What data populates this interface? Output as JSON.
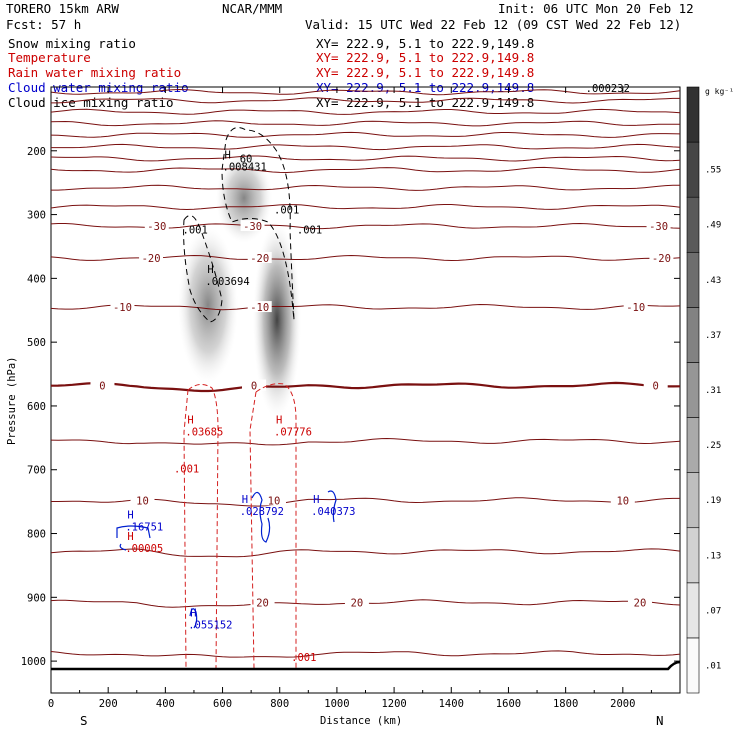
{
  "header": {
    "model": "TORERO  15km ARW",
    "org": "NCAR/MMM",
    "init": "Init: 06 UTC Mon 20 Feb 12",
    "fcst": "Fcst:   57 h",
    "valid": "Valid: 15 UTC Wed 22 Feb 12 (09 CST Wed 22 Feb 12)"
  },
  "legend": [
    {
      "name": "Snow mixing ratio",
      "xy": "XY= 222.9,  5.1 to 222.9,149.8",
      "color": "#000000",
      "xy_color": "#000000"
    },
    {
      "name": "Temperature",
      "xy": "XY= 222.9,  5.1 to 222.9,149.8",
      "color": "#cc0000",
      "xy_color": "#cc0000"
    },
    {
      "name": "Rain water mixing ratio",
      "xy": "XY= 222.9,  5.1 to 222.9,149.8",
      "color": "#cc0000",
      "xy_color": "#cc0000"
    },
    {
      "name": "Cloud water mixing ratio",
      "xy": "XY= 222.9,  5.1 to 222.9,149.8",
      "color": "#0000cc",
      "xy_color": "#0000cc"
    },
    {
      "name": "Cloud ice mixing ratio",
      "xy": "XY= 222.9,  5.1 to 222.9,149.8",
      "color": "#000000",
      "xy_color": "#000000"
    }
  ],
  "chart_data": {
    "type": "cross-section",
    "xlabel": "Distance (km)",
    "ylabel": "Pressure (hPa)",
    "xlim": [
      0,
      2200
    ],
    "ylim": [
      1050,
      100
    ],
    "x_ticks": [
      0,
      200,
      400,
      600,
      800,
      1000,
      1200,
      1400,
      1600,
      1800,
      2000
    ],
    "y_ticks": [
      200,
      300,
      400,
      500,
      600,
      700,
      800,
      900,
      1000
    ],
    "endpoints": {
      "left": "S",
      "right": "N"
    },
    "colorbar": {
      "unit": "g kg⁻¹",
      "ticks": [
        ".01",
        ".07",
        ".13",
        ".19",
        ".25",
        ".31",
        ".37",
        ".43",
        ".49",
        ".55"
      ]
    },
    "temperature_lines": {
      "color": "#7a1010",
      "levels": [
        {
          "p": 108,
          "v": ""
        },
        {
          "p": 121,
          "v": ""
        },
        {
          "p": 139,
          "v": ""
        },
        {
          "p": 157,
          "v": ""
        },
        {
          "p": 175,
          "v": ""
        },
        {
          "p": 194,
          "v": ""
        },
        {
          "p": 212,
          "v": ""
        },
        {
          "p": 230,
          "v": ""
        },
        {
          "p": 258,
          "v": ""
        },
        {
          "p": 288,
          "v": ""
        },
        {
          "p": 318,
          "v": "-30",
          "lx": [
            370,
            705,
            2125
          ]
        },
        {
          "p": 368,
          "v": "-20",
          "lx": [
            350,
            730,
            2135
          ]
        },
        {
          "p": 445,
          "v": "-10",
          "lx": [
            250,
            730,
            2045
          ]
        },
        {
          "p": 568,
          "v": "0",
          "lx": [
            180,
            710,
            2115
          ],
          "bold": true
        },
        {
          "p": 655,
          "v": ""
        },
        {
          "p": 748,
          "v": "10",
          "lx": [
            320,
            780,
            2000
          ]
        },
        {
          "p": 828,
          "v": ""
        },
        {
          "p": 908,
          "v": "20",
          "lx": [
            1070,
            740,
            2060
          ]
        },
        {
          "p": 988,
          "v": ""
        }
      ]
    },
    "snow_contour_labels": [
      {
        "x": 660,
        "p": 218,
        "text": "60"
      },
      {
        "x": 460,
        "p": 330,
        "text": ".001"
      },
      {
        "x": 780,
        "p": 298,
        "text": ".001"
      },
      {
        "x": 860,
        "p": 330,
        "text": ".001"
      }
    ],
    "maxima": [
      {
        "x": 600,
        "p": 228,
        "h": "H",
        "text": ".008431",
        "color": "#000000"
      },
      {
        "x": 540,
        "p": 407,
        "h": "H",
        "text": ".003694",
        "color": "#000000"
      },
      {
        "x": 1870,
        "p": 105,
        "h": "",
        "text": ".000232",
        "color": "#000000"
      },
      {
        "x": 470,
        "p": 643,
        "h": "H",
        "text": ".03685",
        "color": "#cc0000"
      },
      {
        "x": 780,
        "p": 643,
        "h": "H",
        "text": ".07776",
        "color": "#cc0000"
      },
      {
        "x": 260,
        "p": 792,
        "h": "H",
        "text": ".16751",
        "color": "#0000cc"
      },
      {
        "x": 660,
        "p": 768,
        "h": "H",
        "text": ".028792",
        "color": "#0000cc"
      },
      {
        "x": 910,
        "p": 768,
        "h": "H",
        "text": ".040373",
        "color": "#0000cc"
      },
      {
        "x": 480,
        "p": 946,
        "h": "H",
        "text": ".055152",
        "color": "#0000cc"
      },
      {
        "x": 260,
        "p": 826,
        "h": "H",
        "text": ".00005",
        "color": "#cc0000"
      }
    ],
    "rain_contour_labels": [
      {
        "x": 430,
        "p": 704,
        "text": ".001"
      },
      {
        "x": 840,
        "p": 1000,
        "text": ".001"
      }
    ]
  }
}
